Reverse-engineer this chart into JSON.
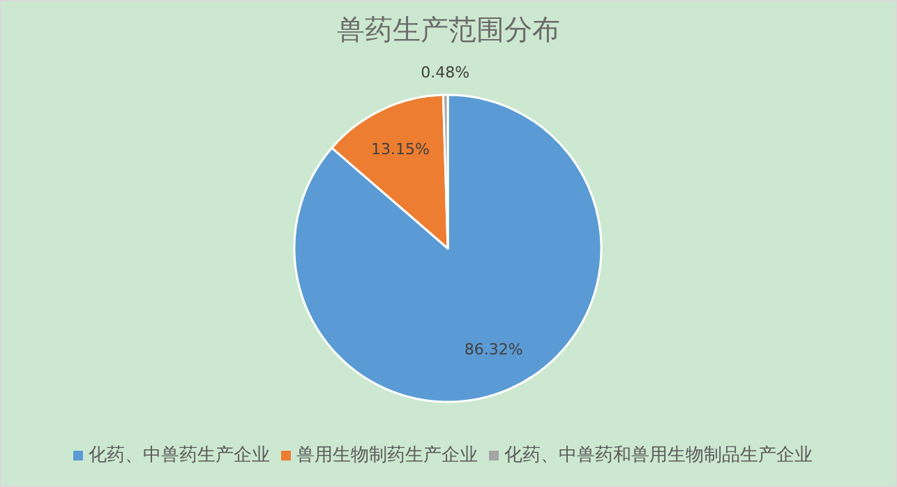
{
  "chart_data": {
    "type": "pie",
    "title": "兽药生产范围分布",
    "categories": [
      "化药、中兽药生产企业",
      "兽用生物制药生产企业",
      "化药、中兽药和兽用生物制品生产企业"
    ],
    "values": [
      86.32,
      13.15,
      0.48
    ],
    "colors": [
      "#5b9bd5",
      "#ed7d31",
      "#a5a5a5"
    ],
    "value_labels": [
      "86.32%",
      "13.15%",
      "0.48%"
    ],
    "legend": "bottom"
  }
}
